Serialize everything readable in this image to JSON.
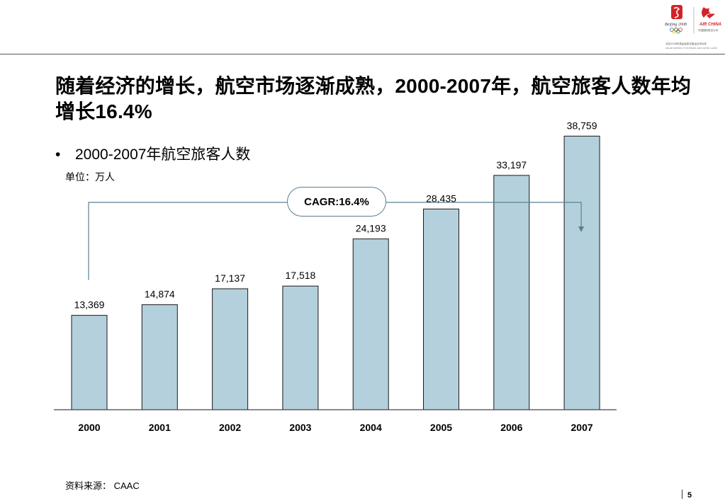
{
  "header": {
    "logo_left_text": "Beijing 2008",
    "logo_right_text": "AIR CHINA",
    "logo_right_sub": "中国国际航空公司",
    "partner_line": "北京2008年奥运会航空客运合作伙伴",
    "partner_line_en": "AIRLINE PARTNER OF THE BEIJING 2008 OLYMPIC GAMES",
    "colors": {
      "olympic_red": "#d2232a",
      "rule": "#555555"
    }
  },
  "title": "随着经济的增长，航空市场逐渐成熟，2000-2007年，航空旅客人数年均增长16.4%",
  "bullet": {
    "symbol": "•",
    "text": "2000-2007年航空旅客人数"
  },
  "unit": "单位：万人",
  "source": "资料来源： CAAC",
  "page_number": "5",
  "chart_data": {
    "type": "bar",
    "categories": [
      "2000",
      "2001",
      "2002",
      "2003",
      "2004",
      "2005",
      "2006",
      "2007"
    ],
    "values": [
      13369,
      14874,
      17137,
      17518,
      24193,
      28435,
      33197,
      38759
    ],
    "labels": [
      "13,369",
      "14,874",
      "17,137",
      "17,518",
      "24,193",
      "28,435",
      "33,197",
      "38,759"
    ],
    "title": "2000-2007年航空旅客人数",
    "unit": "单位：万人",
    "ylim": [
      0,
      42000
    ],
    "grid": false,
    "legend": "none",
    "bar_color": "#b4d0dc",
    "bar_stroke": "#1a1a1a",
    "annotation": {
      "text": "CAGR:16.4%",
      "from": "2000",
      "to": "2007",
      "color": "#5a7f94"
    }
  }
}
